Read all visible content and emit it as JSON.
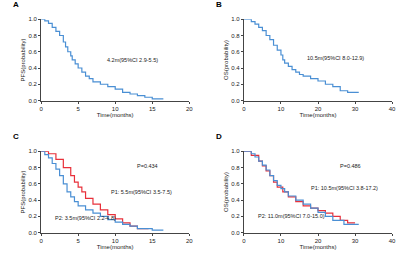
{
  "chart_data": [
    {
      "type": "line",
      "title": "A",
      "xlabel": "Time(months)",
      "ylabel": "PFS(probability)",
      "grid": false,
      "xlim": [
        0,
        20
      ],
      "xticks": [
        0,
        5,
        10,
        15,
        20
      ],
      "ylim": [
        0,
        1.0
      ],
      "yticks": [
        {
          "value": 0,
          "label": "0.0"
        },
        {
          "value": 0.2,
          "label": "0.2"
        },
        {
          "value": 0.4,
          "label": "0.4"
        },
        {
          "value": 0.6,
          "label": "0.6"
        },
        {
          "value": 0.8,
          "label": "0.8"
        },
        {
          "value": 1.0,
          "label": "1.0"
        }
      ],
      "annotations": [
        "4.2m(95%CI 2.9-5.5)"
      ],
      "series": [
        {
          "color": "#4a8fd4",
          "line_style": "step",
          "x": [
            0,
            0.5,
            1,
            1.5,
            2,
            2.5,
            3,
            3.3,
            3.6,
            4,
            4.2,
            4.6,
            5,
            5.5,
            6,
            6.5,
            7,
            8,
            9,
            10,
            11,
            12,
            13,
            14,
            15,
            16.5
          ],
          "values": [
            1,
            0.98,
            0.95,
            0.9,
            0.85,
            0.8,
            0.72,
            0.66,
            0.6,
            0.55,
            0.5,
            0.45,
            0.4,
            0.35,
            0.3,
            0.27,
            0.23,
            0.2,
            0.17,
            0.14,
            0.1,
            0.08,
            0.06,
            0.04,
            0.02,
            0.02
          ]
        }
      ]
    },
    {
      "type": "line",
      "title": "B",
      "xlabel": "Time(months)",
      "ylabel": "OS(probability)",
      "grid": false,
      "xlim": [
        0,
        40
      ],
      "xticks": [
        0,
        10,
        20,
        30,
        40
      ],
      "ylim": [
        0,
        1.0
      ],
      "yticks": [
        {
          "value": 0,
          "label": "0.0"
        },
        {
          "value": 0.2,
          "label": "0.2"
        },
        {
          "value": 0.4,
          "label": "0.4"
        },
        {
          "value": 0.6,
          "label": "0.6"
        },
        {
          "value": 0.8,
          "label": "0.8"
        },
        {
          "value": 1.0,
          "label": "1.0"
        }
      ],
      "annotations": [
        "10.5m(95%CI 8.0-12.9)"
      ],
      "series": [
        {
          "color": "#4a8fd4",
          "line_style": "step",
          "x": [
            0,
            2,
            3,
            4,
            5,
            6,
            7,
            8,
            9,
            10,
            10.5,
            11,
            12,
            13,
            14,
            15,
            16,
            18,
            20,
            22,
            24,
            26,
            28,
            31
          ],
          "values": [
            1,
            0.97,
            0.94,
            0.9,
            0.86,
            0.8,
            0.75,
            0.68,
            0.62,
            0.56,
            0.5,
            0.46,
            0.42,
            0.38,
            0.35,
            0.32,
            0.3,
            0.27,
            0.24,
            0.2,
            0.17,
            0.12,
            0.1,
            0.1
          ]
        }
      ]
    },
    {
      "type": "line",
      "title": "C",
      "xlabel": "Time(months)",
      "ylabel": "PFS(probability)",
      "grid": false,
      "xlim": [
        0,
        20
      ],
      "xticks": [
        0,
        5,
        10,
        15,
        20
      ],
      "ylim": [
        0,
        1.0
      ],
      "yticks": [
        {
          "value": 0,
          "label": "0.0"
        },
        {
          "value": 0.2,
          "label": "0.2"
        },
        {
          "value": 0.4,
          "label": "0.4"
        },
        {
          "value": 0.6,
          "label": "0.6"
        },
        {
          "value": 0.8,
          "label": "0.8"
        },
        {
          "value": 1.0,
          "label": "1.0"
        }
      ],
      "annotations": [
        "P=0.434",
        "P1: 5.5m(95%CI 3.5-7.5)",
        "P2: 3.5m(95%CI 2.2-4.8)"
      ],
      "series": [
        {
          "color": "#e8303a",
          "line_style": "step",
          "x": [
            0,
            1,
            2,
            3,
            4,
            4.5,
            5,
            5.5,
            6,
            7,
            8,
            9,
            10,
            11,
            12,
            13,
            14.5
          ],
          "values": [
            1,
            0.97,
            0.9,
            0.8,
            0.7,
            0.62,
            0.56,
            0.5,
            0.42,
            0.35,
            0.28,
            0.22,
            0.17,
            0.12,
            0.08,
            0.05,
            0.05
          ]
        },
        {
          "color": "#4a8fd4",
          "line_style": "step",
          "x": [
            0,
            0.5,
            1,
            1.5,
            2,
            2.5,
            3,
            3.5,
            4,
            4.5,
            5,
            6,
            7,
            8,
            9,
            10,
            11,
            12,
            13,
            15,
            16.5
          ],
          "values": [
            1,
            0.96,
            0.92,
            0.85,
            0.78,
            0.7,
            0.6,
            0.5,
            0.44,
            0.38,
            0.33,
            0.28,
            0.24,
            0.2,
            0.16,
            0.13,
            0.1,
            0.08,
            0.05,
            0.03,
            0.03
          ]
        }
      ]
    },
    {
      "type": "line",
      "title": "D",
      "xlabel": "Time(months)",
      "ylabel": "OS(probability)",
      "grid": false,
      "xlim": [
        0,
        40
      ],
      "xticks": [
        0,
        10,
        20,
        30,
        40
      ],
      "ylim": [
        0,
        1.0
      ],
      "yticks": [
        {
          "value": 0,
          "label": "0.0"
        },
        {
          "value": 0.2,
          "label": "0.2"
        },
        {
          "value": 0.4,
          "label": "0.4"
        },
        {
          "value": 0.6,
          "label": "0.6"
        },
        {
          "value": 0.8,
          "label": "0.8"
        },
        {
          "value": 1.0,
          "label": "1.0"
        }
      ],
      "annotations": [
        "P=0.486",
        "P1: 10.5m(95%CI 3.8-17.2)",
        "P2: 11.0m(95%CI 7.0-15.0)"
      ],
      "series": [
        {
          "color": "#e8303a",
          "line_style": "step",
          "x": [
            0,
            2,
            4,
            5,
            6,
            7,
            8,
            9,
            10.5,
            12,
            14,
            16,
            18,
            20,
            22,
            24,
            26,
            28,
            30
          ],
          "values": [
            1,
            0.95,
            0.88,
            0.82,
            0.76,
            0.7,
            0.62,
            0.56,
            0.5,
            0.44,
            0.38,
            0.33,
            0.3,
            0.27,
            0.24,
            0.2,
            0.15,
            0.12,
            0.12
          ]
        },
        {
          "color": "#4a8fd4",
          "line_style": "step",
          "x": [
            0,
            2,
            3,
            4,
            5,
            6,
            7,
            8,
            9,
            10,
            11,
            12,
            14,
            16,
            18,
            20,
            22,
            24,
            27,
            31
          ],
          "values": [
            1,
            0.97,
            0.93,
            0.88,
            0.83,
            0.77,
            0.7,
            0.64,
            0.58,
            0.54,
            0.5,
            0.45,
            0.4,
            0.35,
            0.3,
            0.25,
            0.2,
            0.15,
            0.1,
            0.1
          ]
        }
      ]
    }
  ]
}
